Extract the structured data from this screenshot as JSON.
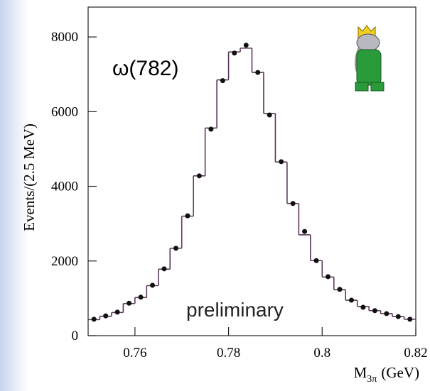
{
  "chart_data": {
    "type": "histogram",
    "ylabel": "Events/(2.5 MeV)",
    "xlabel": {
      "main": "M",
      "sub": "3π",
      "unit": "(GeV)"
    },
    "annotations": [
      "ω(782)",
      "preliminary"
    ],
    "bins": [
      0.75,
      0.7525,
      0.755,
      0.7575,
      0.76,
      0.7625,
      0.765,
      0.7675,
      0.77,
      0.7725,
      0.775,
      0.7775,
      0.78,
      0.7825,
      0.785,
      0.7875,
      0.79,
      0.7925,
      0.795,
      0.7975,
      0.8,
      0.8025,
      0.805,
      0.8075,
      0.81,
      0.8125,
      0.815,
      0.8175,
      0.82
    ],
    "values": [
      430,
      520,
      620,
      860,
      1020,
      1340,
      1780,
      2340,
      3200,
      4280,
      5560,
      6850,
      7600,
      7700,
      7050,
      5950,
      4650,
      3540,
      2700,
      2010,
      1570,
      1230,
      950,
      780,
      670,
      590,
      510,
      440
    ],
    "data_points": [
      440,
      530,
      630,
      870,
      1030,
      1350,
      1790,
      2340,
      3210,
      4280,
      5530,
      6830,
      7570,
      7780,
      7050,
      5910,
      4660,
      3540,
      2790,
      2010,
      1580,
      1240,
      950,
      760,
      670,
      590,
      510,
      440
    ],
    "color": "#5a3a5a",
    "point_color": "#111111",
    "xlim": [
      0.75,
      0.82
    ],
    "ylim": [
      0,
      8800
    ],
    "xticks": [
      0.76,
      0.78,
      0.8,
      0.82
    ],
    "yticks": [
      0,
      2000,
      4000,
      6000,
      8000
    ]
  }
}
